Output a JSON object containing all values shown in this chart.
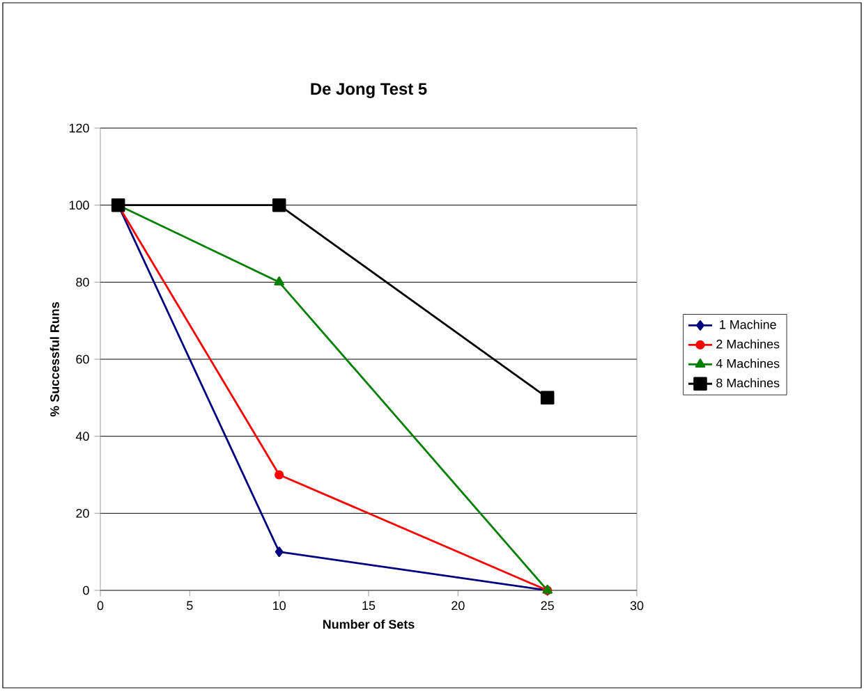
{
  "chart_data": {
    "type": "line",
    "title": "De Jong Test 5",
    "xlabel": "Number of Sets",
    "ylabel": "% Successful Runs",
    "xlim": [
      0,
      30
    ],
    "xticks": [
      0,
      5,
      10,
      15,
      20,
      25,
      30
    ],
    "ylim": [
      0,
      120
    ],
    "yticks": [
      0,
      20,
      40,
      60,
      80,
      100,
      120
    ],
    "grid": "y",
    "legend": "right",
    "series": [
      {
        "name": "1 Machine",
        "color": "#000080",
        "marker": "diamond",
        "x": [
          1,
          10,
          25
        ],
        "values": [
          100,
          10,
          0
        ]
      },
      {
        "name": "2 Machines",
        "color": "#ff0000",
        "marker": "circle",
        "x": [
          1,
          10,
          25
        ],
        "values": [
          100,
          30,
          0
        ]
      },
      {
        "name": "4 Machines",
        "color": "#008000",
        "marker": "triangle",
        "x": [
          1,
          10,
          25
        ],
        "values": [
          100,
          80,
          0
        ]
      },
      {
        "name": "8 Machines",
        "color": "#000000",
        "marker": "square",
        "x": [
          1,
          10,
          25
        ],
        "values": [
          100,
          100,
          50
        ]
      }
    ]
  }
}
